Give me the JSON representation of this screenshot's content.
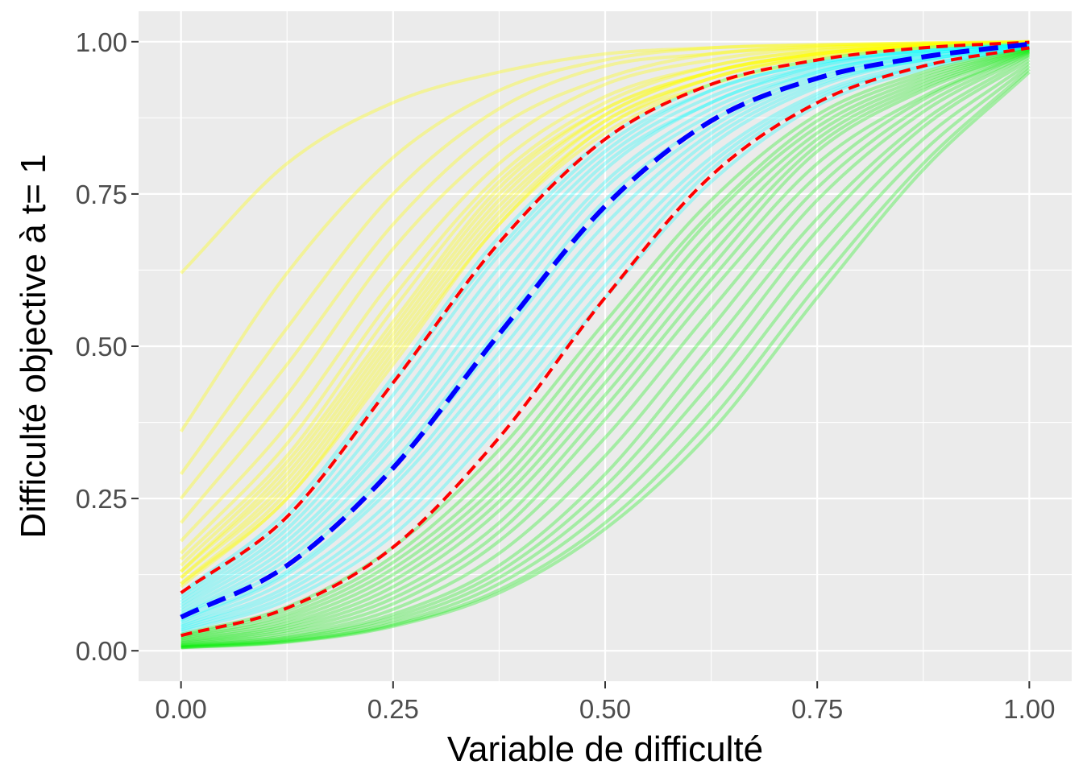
{
  "chart_data": {
    "type": "line",
    "xlabel": "Variable de difficulté",
    "ylabel": "Difficulté objective à t= 1",
    "xlim": [
      -0.05,
      1.05
    ],
    "ylim": [
      -0.05,
      1.05
    ],
    "x_ticks": [
      0.0,
      0.25,
      0.5,
      0.75,
      1.0
    ],
    "x_tick_labels": [
      "0.00",
      "0.25",
      "0.50",
      "0.75",
      "1.00"
    ],
    "y_ticks": [
      0.0,
      0.25,
      0.5,
      0.75,
      1.0
    ],
    "y_tick_labels": [
      "0.00",
      "0.25",
      "0.50",
      "0.75",
      "1.00"
    ],
    "grid": true,
    "background": "#ebebeb",
    "x": [
      0.0,
      0.125,
      0.25,
      0.375,
      0.5,
      0.625,
      0.75,
      0.875,
      1.0
    ],
    "series": [
      {
        "group": "yellow",
        "color": "#ffff00",
        "opacity": 0.35,
        "style": "solid",
        "values": [
          0.62,
          0.8,
          0.9,
          0.95,
          0.98,
          0.99,
          0.995,
          0.998,
          1.0
        ]
      },
      {
        "group": "yellow",
        "color": "#ffff00",
        "opacity": 0.35,
        "style": "solid",
        "values": [
          0.36,
          0.62,
          0.81,
          0.92,
          0.97,
          0.99,
          0.995,
          0.998,
          1.0
        ]
      },
      {
        "group": "yellow",
        "color": "#ffff00",
        "opacity": 0.35,
        "style": "solid",
        "values": [
          0.29,
          0.53,
          0.75,
          0.89,
          0.96,
          0.98,
          0.993,
          0.997,
          1.0
        ]
      },
      {
        "group": "yellow",
        "color": "#ffff00",
        "opacity": 0.35,
        "style": "solid",
        "values": [
          0.25,
          0.47,
          0.7,
          0.86,
          0.94,
          0.98,
          0.99,
          0.996,
          1.0
        ]
      },
      {
        "group": "yellow",
        "color": "#ffff00",
        "opacity": 0.35,
        "style": "solid",
        "values": [
          0.21,
          0.42,
          0.66,
          0.83,
          0.93,
          0.97,
          0.99,
          0.996,
          0.999
        ]
      },
      {
        "group": "yellow",
        "color": "#ffff00",
        "opacity": 0.35,
        "style": "solid",
        "values": [
          0.18,
          0.37,
          0.61,
          0.8,
          0.91,
          0.96,
          0.985,
          0.995,
          0.999
        ]
      },
      {
        "group": "yellow",
        "color": "#ffff00",
        "opacity": 0.35,
        "style": "solid",
        "values": [
          0.16,
          0.34,
          0.58,
          0.78,
          0.9,
          0.96,
          0.985,
          0.994,
          0.999
        ]
      },
      {
        "group": "yellow",
        "color": "#ffff00",
        "opacity": 0.35,
        "style": "solid",
        "values": [
          0.15,
          0.32,
          0.56,
          0.77,
          0.89,
          0.95,
          0.98,
          0.993,
          0.999
        ]
      },
      {
        "group": "yellow",
        "color": "#ffff00",
        "opacity": 0.35,
        "style": "solid",
        "values": [
          0.14,
          0.31,
          0.54,
          0.76,
          0.89,
          0.95,
          0.98,
          0.993,
          0.998
        ]
      },
      {
        "group": "yellow",
        "color": "#ffff00",
        "opacity": 0.35,
        "style": "solid",
        "values": [
          0.13,
          0.3,
          0.53,
          0.75,
          0.88,
          0.95,
          0.98,
          0.993,
          0.998
        ]
      },
      {
        "group": "yellow",
        "color": "#ffff00",
        "opacity": 0.35,
        "style": "solid",
        "values": [
          0.13,
          0.29,
          0.52,
          0.74,
          0.88,
          0.95,
          0.98,
          0.992,
          0.998
        ]
      },
      {
        "group": "yellow",
        "color": "#ffff00",
        "opacity": 0.35,
        "style": "solid",
        "values": [
          0.12,
          0.28,
          0.51,
          0.73,
          0.87,
          0.94,
          0.98,
          0.992,
          0.998
        ]
      },
      {
        "group": "yellow",
        "color": "#ffff00",
        "opacity": 0.35,
        "style": "solid",
        "values": [
          0.12,
          0.27,
          0.5,
          0.72,
          0.87,
          0.94,
          0.975,
          0.991,
          0.998
        ]
      },
      {
        "group": "yellow",
        "color": "#ffff00",
        "opacity": 0.35,
        "style": "solid",
        "values": [
          0.11,
          0.26,
          0.49,
          0.71,
          0.86,
          0.94,
          0.975,
          0.99,
          0.998
        ]
      },
      {
        "group": "yellow",
        "color": "#ffff00",
        "opacity": 0.35,
        "style": "solid",
        "values": [
          0.11,
          0.25,
          0.48,
          0.7,
          0.86,
          0.93,
          0.97,
          0.99,
          0.997
        ]
      },
      {
        "group": "yellow",
        "color": "#ffff00",
        "opacity": 0.35,
        "style": "solid",
        "values": [
          0.105,
          0.25,
          0.47,
          0.7,
          0.85,
          0.93,
          0.97,
          0.99,
          0.997
        ]
      },
      {
        "group": "cyan",
        "color": "#00ffff",
        "opacity": 0.3,
        "style": "solid",
        "values": [
          0.095,
          0.23,
          0.45,
          0.68,
          0.84,
          0.93,
          0.97,
          0.99,
          0.997
        ]
      },
      {
        "group": "cyan",
        "color": "#00ffff",
        "opacity": 0.3,
        "style": "solid",
        "values": [
          0.09,
          0.22,
          0.44,
          0.66,
          0.83,
          0.92,
          0.965,
          0.985,
          0.996
        ]
      },
      {
        "group": "cyan",
        "color": "#00ffff",
        "opacity": 0.3,
        "style": "solid",
        "values": [
          0.085,
          0.21,
          0.42,
          0.65,
          0.82,
          0.92,
          0.965,
          0.985,
          0.996
        ]
      },
      {
        "group": "cyan",
        "color": "#00ffff",
        "opacity": 0.3,
        "style": "solid",
        "values": [
          0.08,
          0.2,
          0.4,
          0.63,
          0.81,
          0.91,
          0.96,
          0.985,
          0.996
        ]
      },
      {
        "group": "cyan",
        "color": "#00ffff",
        "opacity": 0.3,
        "style": "solid",
        "values": [
          0.075,
          0.19,
          0.38,
          0.61,
          0.8,
          0.9,
          0.96,
          0.985,
          0.995
        ]
      },
      {
        "group": "cyan",
        "color": "#00ffff",
        "opacity": 0.3,
        "style": "solid",
        "values": [
          0.07,
          0.18,
          0.36,
          0.59,
          0.79,
          0.9,
          0.955,
          0.98,
          0.995
        ]
      },
      {
        "group": "cyan",
        "color": "#00ffff",
        "opacity": 0.3,
        "style": "solid",
        "values": [
          0.065,
          0.17,
          0.35,
          0.57,
          0.77,
          0.89,
          0.95,
          0.98,
          0.995
        ]
      },
      {
        "group": "cyan",
        "color": "#00ffff",
        "opacity": 0.3,
        "style": "solid",
        "values": [
          0.06,
          0.16,
          0.33,
          0.55,
          0.76,
          0.88,
          0.95,
          0.98,
          0.994
        ]
      },
      {
        "group": "cyan",
        "color": "#00ffff",
        "opacity": 0.3,
        "style": "solid",
        "values": [
          0.057,
          0.15,
          0.31,
          0.53,
          0.74,
          0.87,
          0.945,
          0.975,
          0.994
        ]
      },
      {
        "group": "cyan",
        "color": "#00ffff",
        "opacity": 0.3,
        "style": "solid",
        "values": [
          0.055,
          0.14,
          0.3,
          0.51,
          0.72,
          0.86,
          0.94,
          0.975,
          0.993
        ]
      },
      {
        "group": "cyan",
        "color": "#00ffff",
        "opacity": 0.3,
        "style": "solid",
        "values": [
          0.05,
          0.13,
          0.28,
          0.49,
          0.7,
          0.85,
          0.935,
          0.97,
          0.993
        ]
      },
      {
        "group": "cyan",
        "color": "#00ffff",
        "opacity": 0.3,
        "style": "solid",
        "values": [
          0.047,
          0.125,
          0.27,
          0.47,
          0.68,
          0.84,
          0.93,
          0.97,
          0.992
        ]
      },
      {
        "group": "cyan",
        "color": "#00ffff",
        "opacity": 0.3,
        "style": "solid",
        "values": [
          0.043,
          0.115,
          0.25,
          0.45,
          0.66,
          0.83,
          0.925,
          0.97,
          0.992
        ]
      },
      {
        "group": "cyan",
        "color": "#00ffff",
        "opacity": 0.3,
        "style": "solid",
        "values": [
          0.04,
          0.105,
          0.235,
          0.43,
          0.64,
          0.81,
          0.915,
          0.965,
          0.991
        ]
      },
      {
        "group": "cyan",
        "color": "#00ffff",
        "opacity": 0.3,
        "style": "solid",
        "values": [
          0.037,
          0.098,
          0.22,
          0.41,
          0.62,
          0.8,
          0.91,
          0.96,
          0.99
        ]
      },
      {
        "group": "cyan",
        "color": "#00ffff",
        "opacity": 0.3,
        "style": "solid",
        "values": [
          0.034,
          0.09,
          0.205,
          0.39,
          0.6,
          0.79,
          0.905,
          0.96,
          0.99
        ]
      },
      {
        "group": "cyan",
        "color": "#00ffff",
        "opacity": 0.3,
        "style": "solid",
        "values": [
          0.031,
          0.083,
          0.19,
          0.37,
          0.58,
          0.77,
          0.895,
          0.955,
          0.99
        ]
      },
      {
        "group": "green",
        "color": "#00ee00",
        "opacity": 0.3,
        "style": "solid",
        "values": [
          0.027,
          0.072,
          0.17,
          0.33,
          0.54,
          0.74,
          0.88,
          0.95,
          0.99
        ]
      },
      {
        "group": "green",
        "color": "#00ee00",
        "opacity": 0.3,
        "style": "solid",
        "values": [
          0.025,
          0.066,
          0.155,
          0.31,
          0.52,
          0.72,
          0.87,
          0.945,
          0.988
        ]
      },
      {
        "group": "green",
        "color": "#00ee00",
        "opacity": 0.3,
        "style": "solid",
        "values": [
          0.023,
          0.06,
          0.145,
          0.29,
          0.5,
          0.71,
          0.86,
          0.94,
          0.988
        ]
      },
      {
        "group": "green",
        "color": "#00ee00",
        "opacity": 0.3,
        "style": "solid",
        "values": [
          0.021,
          0.055,
          0.135,
          0.275,
          0.48,
          0.69,
          0.85,
          0.935,
          0.987
        ]
      },
      {
        "group": "green",
        "color": "#00ee00",
        "opacity": 0.3,
        "style": "solid",
        "values": [
          0.019,
          0.05,
          0.125,
          0.26,
          0.46,
          0.67,
          0.84,
          0.93,
          0.986
        ]
      },
      {
        "group": "green",
        "color": "#00ee00",
        "opacity": 0.3,
        "style": "solid",
        "values": [
          0.017,
          0.045,
          0.115,
          0.245,
          0.44,
          0.65,
          0.83,
          0.925,
          0.985
        ]
      },
      {
        "group": "green",
        "color": "#00ee00",
        "opacity": 0.3,
        "style": "solid",
        "values": [
          0.015,
          0.041,
          0.105,
          0.23,
          0.42,
          0.63,
          0.82,
          0.92,
          0.984
        ]
      },
      {
        "group": "green",
        "color": "#00ee00",
        "opacity": 0.3,
        "style": "solid",
        "values": [
          0.013,
          0.037,
          0.095,
          0.21,
          0.4,
          0.61,
          0.8,
          0.91,
          0.983
        ]
      },
      {
        "group": "green",
        "color": "#00ee00",
        "opacity": 0.3,
        "style": "solid",
        "values": [
          0.012,
          0.033,
          0.086,
          0.195,
          0.38,
          0.59,
          0.78,
          0.905,
          0.982
        ]
      },
      {
        "group": "green",
        "color": "#00ee00",
        "opacity": 0.3,
        "style": "solid",
        "values": [
          0.01,
          0.029,
          0.077,
          0.18,
          0.35,
          0.56,
          0.76,
          0.895,
          0.98
        ]
      },
      {
        "group": "green",
        "color": "#00ee00",
        "opacity": 0.3,
        "style": "solid",
        "values": [
          0.009,
          0.025,
          0.068,
          0.16,
          0.32,
          0.53,
          0.74,
          0.885,
          0.978
        ]
      },
      {
        "group": "green",
        "color": "#00ee00",
        "opacity": 0.3,
        "style": "solid",
        "values": [
          0.008,
          0.022,
          0.06,
          0.14,
          0.29,
          0.5,
          0.71,
          0.87,
          0.975
        ]
      },
      {
        "group": "green",
        "color": "#00ee00",
        "opacity": 0.3,
        "style": "solid",
        "values": [
          0.007,
          0.02,
          0.055,
          0.13,
          0.27,
          0.47,
          0.69,
          0.86,
          0.97
        ]
      },
      {
        "group": "green",
        "color": "#00ee00",
        "opacity": 0.3,
        "style": "solid",
        "values": [
          0.006,
          0.018,
          0.05,
          0.12,
          0.25,
          0.44,
          0.66,
          0.84,
          0.965
        ]
      },
      {
        "group": "green",
        "color": "#00ee00",
        "opacity": 0.3,
        "style": "solid",
        "values": [
          0.006,
          0.016,
          0.045,
          0.11,
          0.23,
          0.41,
          0.63,
          0.82,
          0.96
        ]
      },
      {
        "group": "green",
        "color": "#00ee00",
        "opacity": 0.3,
        "style": "solid",
        "values": [
          0.005,
          0.015,
          0.042,
          0.1,
          0.21,
          0.38,
          0.6,
          0.8,
          0.955
        ]
      },
      {
        "group": "green",
        "color": "#00ee00",
        "opacity": 0.3,
        "style": "solid",
        "values": [
          0.005,
          0.014,
          0.04,
          0.095,
          0.2,
          0.36,
          0.58,
          0.79,
          0.95
        ]
      },
      {
        "group": "quantile",
        "color": "#ff0000",
        "opacity": 1,
        "style": "dashed",
        "values": [
          0.095,
          0.22,
          0.44,
          0.67,
          0.84,
          0.93,
          0.97,
          0.99,
          0.999
        ]
      },
      {
        "group": "median",
        "color": "#0000ff",
        "opacity": 1,
        "style": "dashed",
        "values": [
          0.055,
          0.14,
          0.3,
          0.52,
          0.73,
          0.87,
          0.94,
          0.975,
          0.996
        ]
      },
      {
        "group": "quantile",
        "color": "#ff0000",
        "opacity": 1,
        "style": "dashed",
        "values": [
          0.025,
          0.07,
          0.17,
          0.35,
          0.58,
          0.78,
          0.9,
          0.96,
          0.99
        ]
      }
    ]
  }
}
